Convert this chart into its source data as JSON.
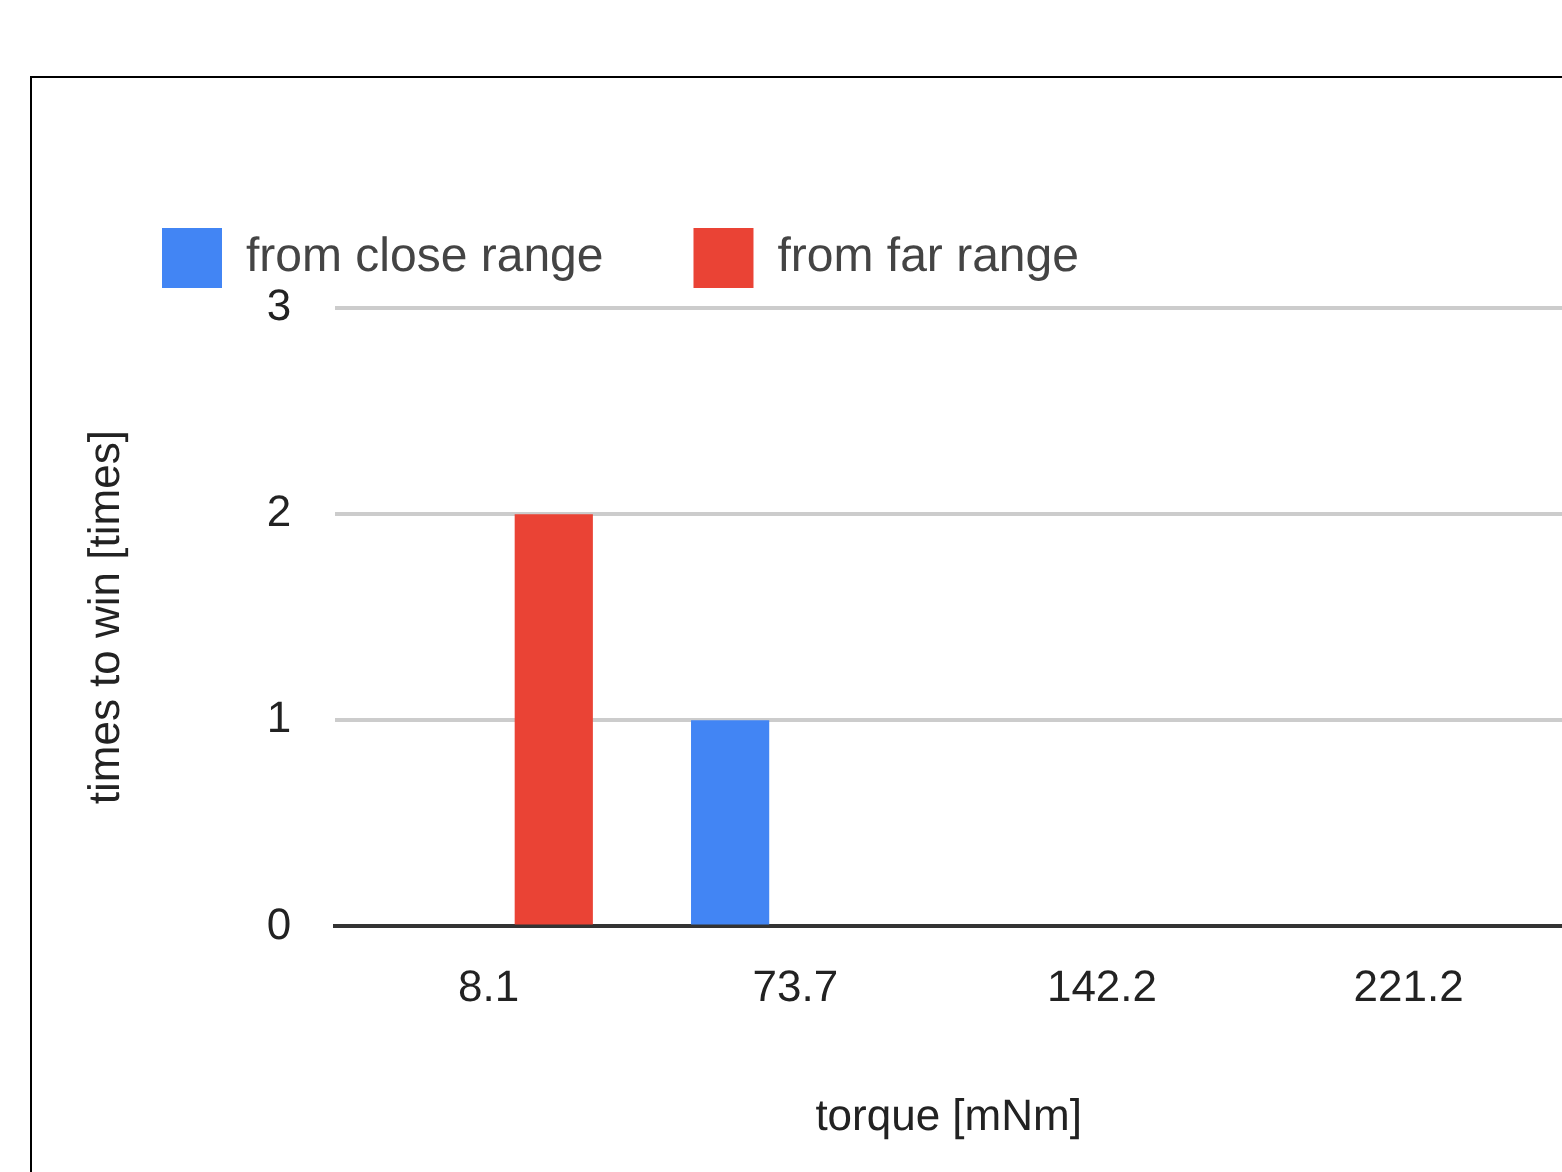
{
  "chart_data": {
    "type": "bar",
    "xlabel": "torque [mNm]",
    "ylabel": "times to win [times]",
    "categories": [
      "8.1",
      "73.7",
      "142.2",
      "221.2"
    ],
    "series": [
      {
        "name": "from close range",
        "color": "#4285f4",
        "values": [
          0,
          1,
          0,
          0
        ]
      },
      {
        "name": "from far range",
        "color": "#ea4335",
        "values": [
          2,
          0,
          0,
          0
        ]
      }
    ],
    "ylim": [
      0,
      3
    ],
    "yticks": [
      0,
      1,
      2,
      3
    ],
    "grid": "y",
    "legend": "top"
  }
}
